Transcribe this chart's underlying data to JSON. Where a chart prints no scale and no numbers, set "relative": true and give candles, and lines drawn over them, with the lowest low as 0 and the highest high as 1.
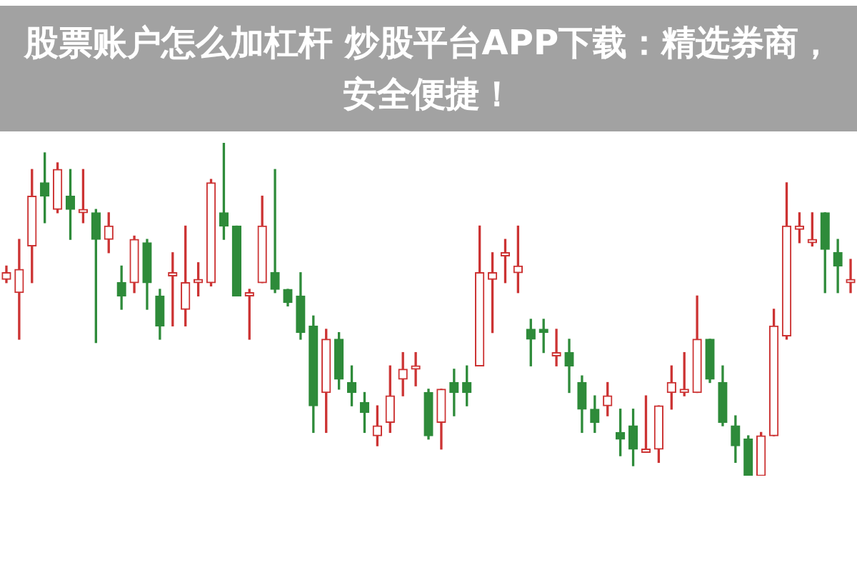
{
  "chart_data": {
    "type": "candlestick",
    "title": "股票账户怎么加杠杆 炒股平台APP下载：精选券商，安全便捷！",
    "relative": true,
    "categories": [
      null,
      null,
      null,
      null,
      null,
      null,
      null,
      null,
      null,
      null,
      null,
      null,
      null,
      null,
      null,
      null,
      null,
      null,
      null,
      null,
      null,
      null,
      null,
      null,
      null,
      null,
      null,
      null,
      null,
      null,
      null,
      null,
      null,
      null,
      null,
      null,
      null,
      null,
      null,
      null,
      null,
      null,
      null,
      null,
      null,
      null,
      null,
      null,
      null,
      null,
      null,
      null,
      null,
      null,
      null,
      null,
      null,
      null,
      null,
      null,
      null,
      null,
      null,
      null,
      null,
      null,
      null
    ],
    "ohlc": [
      [
        0.59,
        0.63,
        0.58,
        0.61
      ],
      [
        0.55,
        0.71,
        0.41,
        0.62
      ],
      [
        0.69,
        0.92,
        0.58,
        0.84
      ],
      [
        0.88,
        0.97,
        0.76,
        0.84
      ],
      [
        0.8,
        0.94,
        0.79,
        0.92
      ],
      [
        0.84,
        0.92,
        0.71,
        0.8
      ],
      [
        0.79,
        0.92,
        0.76,
        0.8
      ],
      [
        0.79,
        0.8,
        0.4,
        0.71
      ],
      [
        0.71,
        0.79,
        0.67,
        0.75
      ],
      [
        0.58,
        0.63,
        0.5,
        0.54
      ],
      [
        0.58,
        0.72,
        0.55,
        0.71
      ],
      [
        0.7,
        0.71,
        0.5,
        0.58
      ],
      [
        0.54,
        0.56,
        0.41,
        0.45
      ],
      [
        0.6,
        0.67,
        0.45,
        0.61
      ],
      [
        0.5,
        0.75,
        0.45,
        0.58
      ],
      [
        0.58,
        0.64,
        0.54,
        0.59
      ],
      [
        0.58,
        0.89,
        0.57,
        0.88
      ],
      [
        0.79,
        1.0,
        0.71,
        0.75
      ],
      [
        0.75,
        0.75,
        0.54,
        0.54
      ],
      [
        0.54,
        0.56,
        0.41,
        0.55
      ],
      [
        0.58,
        0.84,
        0.58,
        0.75
      ],
      [
        0.61,
        0.92,
        0.55,
        0.56
      ],
      [
        0.56,
        0.56,
        0.51,
        0.52
      ],
      [
        0.54,
        0.61,
        0.41,
        0.43
      ],
      [
        0.45,
        0.48,
        0.13,
        0.21
      ],
      [
        0.25,
        0.44,
        0.13,
        0.41
      ],
      [
        0.41,
        0.43,
        0.26,
        0.29
      ],
      [
        0.28,
        0.33,
        0.21,
        0.25
      ],
      [
        0.22,
        0.25,
        0.13,
        0.19
      ],
      [
        0.12,
        0.21,
        0.09,
        0.15
      ],
      [
        0.16,
        0.33,
        0.13,
        0.24
      ],
      [
        0.29,
        0.37,
        0.24,
        0.32
      ],
      [
        0.32,
        0.37,
        0.27,
        0.33
      ],
      [
        0.25,
        0.26,
        0.11,
        0.12
      ],
      [
        0.16,
        0.26,
        0.08,
        0.26
      ],
      [
        0.28,
        0.32,
        0.18,
        0.25
      ],
      [
        0.28,
        0.33,
        0.21,
        0.25
      ],
      [
        0.33,
        0.75,
        0.33,
        0.61
      ],
      [
        0.59,
        0.67,
        0.43,
        0.61
      ],
      [
        0.66,
        0.71,
        0.58,
        0.67
      ],
      [
        0.61,
        0.75,
        0.55,
        0.63
      ],
      [
        0.44,
        0.47,
        0.33,
        0.41
      ],
      [
        0.44,
        0.47,
        0.37,
        0.43
      ],
      [
        0.36,
        0.44,
        0.33,
        0.37
      ],
      [
        0.37,
        0.41,
        0.25,
        0.33
      ],
      [
        0.28,
        0.3,
        0.13,
        0.2
      ],
      [
        0.2,
        0.24,
        0.13,
        0.16
      ],
      [
        0.21,
        0.28,
        0.18,
        0.24
      ],
      [
        0.13,
        0.2,
        0.06,
        0.11
      ],
      [
        0.15,
        0.2,
        0.03,
        0.08
      ],
      [
        0.07,
        0.24,
        0.07,
        0.08
      ],
      [
        0.08,
        0.21,
        0.04,
        0.21
      ],
      [
        0.25,
        0.33,
        0.2,
        0.28
      ],
      [
        0.25,
        0.37,
        0.24,
        0.26
      ],
      [
        0.25,
        0.54,
        0.25,
        0.41
      ],
      [
        0.41,
        0.41,
        0.28,
        0.29
      ],
      [
        0.28,
        0.33,
        0.15,
        0.16
      ],
      [
        0.15,
        0.18,
        0.04,
        0.09
      ],
      [
        0.11,
        0.12,
        0,
        0
      ],
      [
        0,
        0.13,
        0,
        0.12
      ],
      [
        0.12,
        0.5,
        0.12,
        0.45
      ],
      [
        0.42,
        0.88,
        0.41,
        0.75
      ],
      [
        0.74,
        0.79,
        0.7,
        0.75
      ],
      [
        0.7,
        0.79,
        0.69,
        0.71
      ],
      [
        0.79,
        0.79,
        0.55,
        0.68
      ],
      [
        0.67,
        0.71,
        0.55,
        0.63
      ],
      [
        0.58,
        0.65,
        0.55,
        0.59
      ]
    ]
  }
}
